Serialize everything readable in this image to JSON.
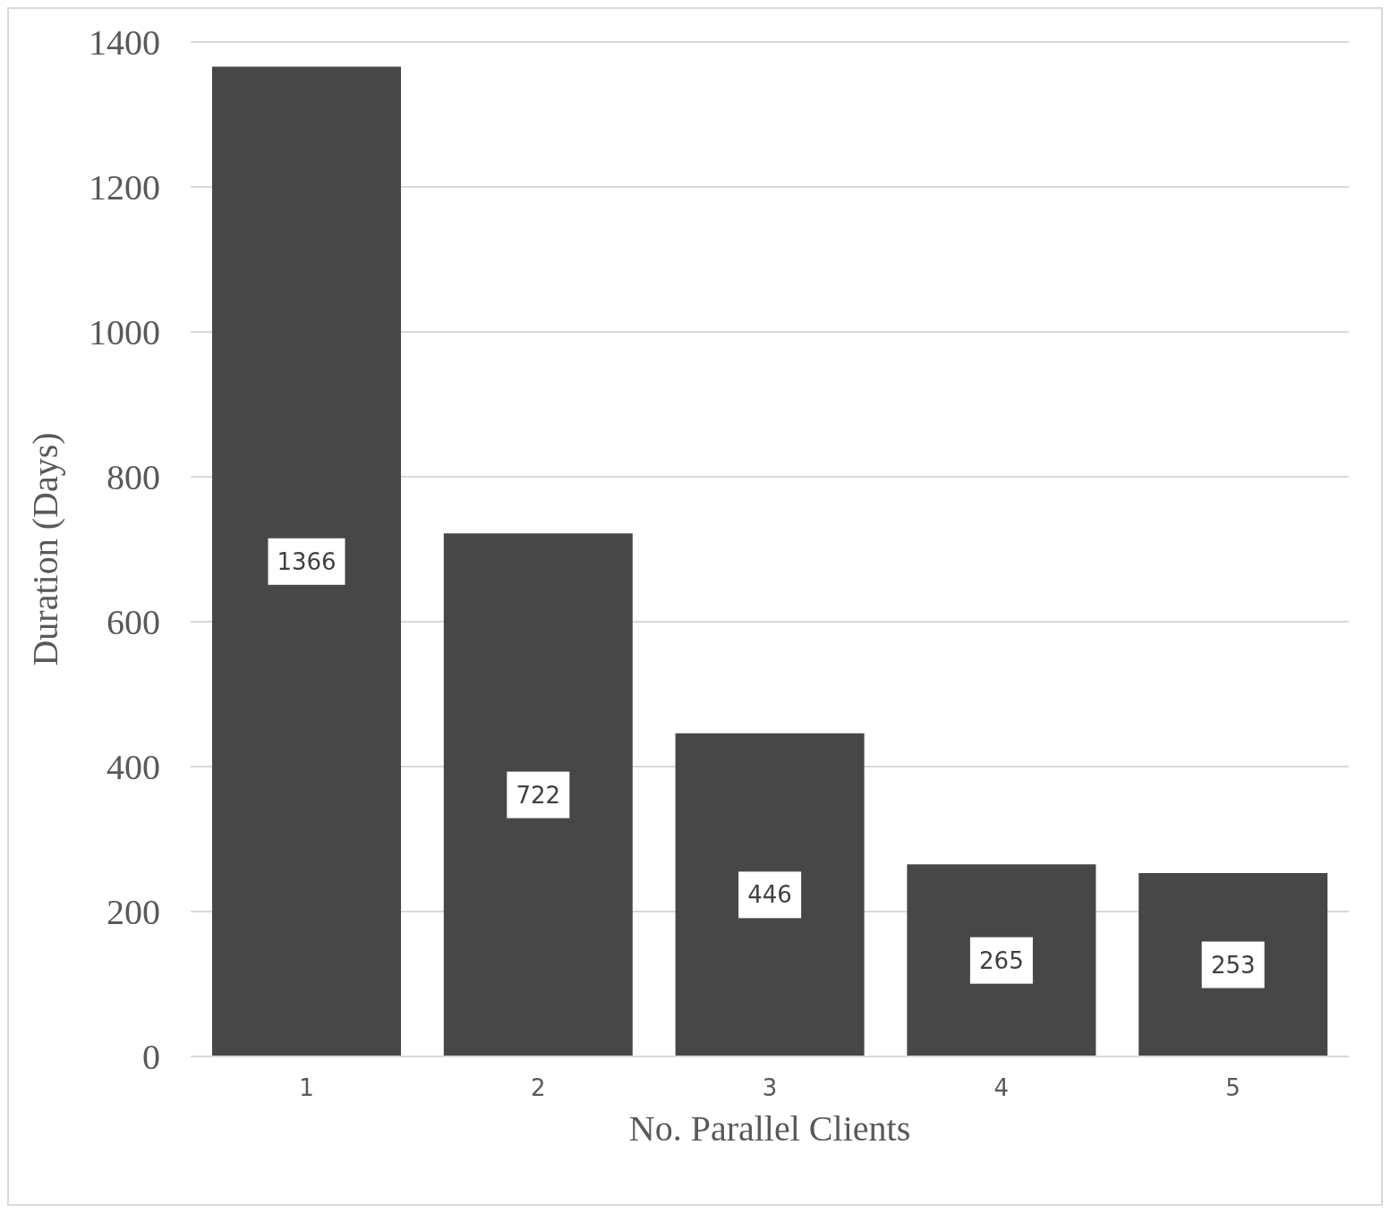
{
  "chart_data": {
    "type": "bar",
    "xlabel": "No. Parallel  Clients",
    "ylabel": "Duration (Days)",
    "categories": [
      "1",
      "2",
      "3",
      "4",
      "5"
    ],
    "values": [
      1366,
      722,
      446,
      265,
      253
    ],
    "color": "#474747",
    "ylim": [
      0,
      1400
    ],
    "yticks": [
      0,
      200,
      400,
      600,
      800,
      1000,
      1200,
      1400
    ],
    "grid": "y",
    "data_labels": true
  }
}
